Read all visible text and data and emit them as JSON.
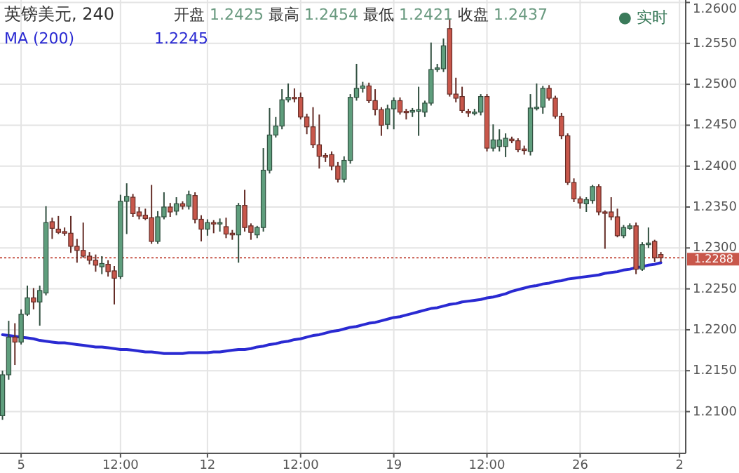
{
  "chart_data": {
    "type": "candlestick",
    "title": "英镑美元, 240",
    "categories": [
      null,
      null,
      null,
      "5",
      null,
      null,
      null,
      null,
      null,
      null,
      null,
      null,
      null,
      null,
      null,
      null,
      null,
      null,
      null,
      "12:00",
      null,
      null,
      null,
      null,
      null,
      null,
      null,
      null,
      null,
      null,
      null,
      null,
      null,
      "12",
      null,
      null,
      null,
      null,
      null,
      null,
      null,
      null,
      null,
      null,
      null,
      null,
      null,
      null,
      "12:00",
      null,
      null,
      null,
      null,
      null,
      null,
      null,
      null,
      null,
      null,
      null,
      null,
      null,
      null,
      "19",
      null,
      null,
      null,
      null,
      null,
      null,
      null,
      null,
      null,
      null,
      null,
      null,
      null,
      null,
      "12:00",
      null,
      null,
      null,
      null,
      null,
      null,
      null,
      null,
      null,
      null,
      null,
      null,
      null,
      null,
      "26",
      null,
      null,
      null,
      null,
      null,
      null,
      null,
      null,
      null,
      null,
      null,
      null,
      null,
      null,
      null,
      "2"
    ],
    "ohlc": [
      [
        1.2095,
        1.215,
        1.209,
        1.2145
      ],
      [
        1.2145,
        1.2211,
        1.2139,
        1.2191
      ],
      [
        1.2191,
        1.2208,
        1.2157,
        1.2185
      ],
      [
        1.2185,
        1.2225,
        1.2182,
        1.2219
      ],
      [
        1.2219,
        1.2254,
        1.2217,
        1.2239
      ],
      [
        1.2239,
        1.2251,
        1.2225,
        1.2234
      ],
      [
        1.2234,
        1.2254,
        1.2205,
        1.2248
      ],
      [
        1.2245,
        1.2351,
        1.2242,
        1.2331
      ],
      [
        1.2332,
        1.2337,
        1.2311,
        1.2324
      ],
      [
        1.2323,
        1.2339,
        1.2317,
        1.2319
      ],
      [
        1.232,
        1.2325,
        1.2315,
        1.2318
      ],
      [
        1.2318,
        1.2339,
        1.2294,
        1.2302
      ],
      [
        1.2302,
        1.2311,
        1.2282,
        1.2297
      ],
      [
        1.2297,
        1.2331,
        1.2288,
        1.229
      ],
      [
        1.229,
        1.2295,
        1.228,
        1.2285
      ],
      [
        1.2285,
        1.2292,
        1.2271,
        1.2279
      ],
      [
        1.2277,
        1.229,
        1.2268,
        1.2281
      ],
      [
        1.228,
        1.2285,
        1.2265,
        1.2271
      ],
      [
        1.2272,
        1.2278,
        1.2231,
        1.2263
      ],
      [
        1.2265,
        1.2365,
        1.2262,
        1.2357
      ],
      [
        1.2357,
        1.2379,
        1.2317,
        1.2363
      ],
      [
        1.2362,
        1.2366,
        1.2338,
        1.2342
      ],
      [
        1.2344,
        1.235,
        1.2335,
        1.2339
      ],
      [
        1.234,
        1.2348,
        1.2334,
        1.2336
      ],
      [
        1.2337,
        1.2377,
        1.2305,
        1.2308
      ],
      [
        1.2308,
        1.2345,
        1.2305,
        1.2338
      ],
      [
        1.2338,
        1.2368,
        1.2335,
        1.235
      ],
      [
        1.235,
        1.2355,
        1.2338,
        1.2344
      ],
      [
        1.2345,
        1.2362,
        1.234,
        1.2354
      ],
      [
        1.2354,
        1.2357,
        1.2347,
        1.2351
      ],
      [
        1.2351,
        1.237,
        1.2347,
        1.2365
      ],
      [
        1.2364,
        1.2368,
        1.233,
        1.2335
      ],
      [
        1.2335,
        1.234,
        1.2308,
        1.2323
      ],
      [
        1.2323,
        1.2335,
        1.2315,
        1.2331
      ],
      [
        1.2331,
        1.2334,
        1.2318,
        1.233
      ],
      [
        1.233,
        1.2336,
        1.232,
        1.2331
      ],
      [
        1.2326,
        1.2337,
        1.2312,
        1.2317
      ],
      [
        1.2318,
        1.2322,
        1.231,
        1.2316
      ],
      [
        1.2316,
        1.2355,
        1.2282,
        1.2352
      ],
      [
        1.2352,
        1.2371,
        1.232,
        1.2325
      ],
      [
        1.2327,
        1.233,
        1.231,
        1.2319
      ],
      [
        1.2316,
        1.2327,
        1.2312,
        1.2325
      ],
      [
        1.2325,
        1.2422,
        1.232,
        1.2395
      ],
      [
        1.2395,
        1.2471,
        1.2391,
        1.2438
      ],
      [
        1.2438,
        1.246,
        1.2435,
        1.2449
      ],
      [
        1.2449,
        1.2494,
        1.2445,
        1.2481
      ],
      [
        1.2481,
        1.2501,
        1.2478,
        1.2484
      ],
      [
        1.2484,
        1.2495,
        1.2478,
        1.2483
      ],
      [
        1.2484,
        1.249,
        1.2457,
        1.246
      ],
      [
        1.246,
        1.2464,
        1.2439,
        1.2448
      ],
      [
        1.2448,
        1.2472,
        1.2422,
        1.2426
      ],
      [
        1.2426,
        1.2463,
        1.2397,
        1.2412
      ],
      [
        1.2413,
        1.2416,
        1.2405,
        1.2411
      ],
      [
        1.2414,
        1.2418,
        1.2395,
        1.24
      ],
      [
        1.24,
        1.2405,
        1.238,
        1.2384
      ],
      [
        1.2384,
        1.2412,
        1.238,
        1.2407
      ],
      [
        1.2407,
        1.2488,
        1.2403,
        1.2484
      ],
      [
        1.2484,
        1.2525,
        1.248,
        1.2495
      ],
      [
        1.2495,
        1.2503,
        1.249,
        1.2498
      ],
      [
        1.2498,
        1.2502,
        1.2477,
        1.248
      ],
      [
        1.248,
        1.2494,
        1.2462,
        1.2469
      ],
      [
        1.2469,
        1.2472,
        1.2437,
        1.245
      ],
      [
        1.2451,
        1.2475,
        1.2445,
        1.247
      ],
      [
        1.247,
        1.2484,
        1.2445,
        1.248
      ],
      [
        1.248,
        1.2484,
        1.2463,
        1.2466
      ],
      [
        1.2467,
        1.247,
        1.2457,
        1.2466
      ],
      [
        1.2466,
        1.2471,
        1.246,
        1.2468
      ],
      [
        1.2467,
        1.2497,
        1.2437,
        1.2469
      ],
      [
        1.2466,
        1.248,
        1.246,
        1.2477
      ],
      [
        1.2477,
        1.2551,
        1.2474,
        1.2518
      ],
      [
        1.2518,
        1.2525,
        1.2515,
        1.252
      ],
      [
        1.2519,
        1.2556,
        1.2515,
        1.2547
      ],
      [
        1.2568,
        1.258,
        1.2485,
        1.2488
      ],
      [
        1.2488,
        1.2508,
        1.2478,
        1.2483
      ],
      [
        1.2485,
        1.2497,
        1.2465,
        1.2468
      ],
      [
        1.2467,
        1.247,
        1.246,
        1.2465
      ],
      [
        1.2465,
        1.247,
        1.2462,
        1.2466
      ],
      [
        1.2466,
        1.2488,
        1.2462,
        1.2485
      ],
      [
        1.2485,
        1.2488,
        1.2418,
        1.2422
      ],
      [
        1.2422,
        1.2451,
        1.2418,
        1.2432
      ],
      [
        1.2424,
        1.2445,
        1.2418,
        1.2432
      ],
      [
        1.2424,
        1.244,
        1.2411,
        1.2434
      ],
      [
        1.2433,
        1.2436,
        1.2428,
        1.2431
      ],
      [
        1.2431,
        1.2434,
        1.2417,
        1.242
      ],
      [
        1.2421,
        1.2425,
        1.2414,
        1.2419
      ],
      [
        1.2418,
        1.2488,
        1.2413,
        1.2471
      ],
      [
        1.2471,
        1.2501,
        1.2468,
        1.2472
      ],
      [
        1.2472,
        1.2498,
        1.2464,
        1.2495
      ],
      [
        1.2495,
        1.2499,
        1.248,
        1.2483
      ],
      [
        1.2483,
        1.2486,
        1.2458,
        1.2461
      ],
      [
        1.2461,
        1.2465,
        1.2433,
        1.2437
      ],
      [
        1.2437,
        1.244,
        1.2377,
        1.238
      ],
      [
        1.238,
        1.2385,
        1.2356,
        1.236
      ],
      [
        1.236,
        1.2363,
        1.2348,
        1.2355
      ],
      [
        1.2354,
        1.2362,
        1.2344,
        1.2359
      ],
      [
        1.2358,
        1.2377,
        1.2354,
        1.2375
      ],
      [
        1.2375,
        1.2378,
        1.234,
        1.2344
      ],
      [
        1.2344,
        1.2346,
        1.2299,
        1.2343
      ],
      [
        1.2344,
        1.2362,
        1.2334,
        1.2338
      ],
      [
        1.2338,
        1.2348,
        1.2313,
        1.2315
      ],
      [
        1.2315,
        1.2328,
        1.2312,
        1.2325
      ],
      [
        1.2324,
        1.233,
        1.2322,
        1.2327
      ],
      [
        1.2327,
        1.2331,
        1.2268,
        1.2274
      ],
      [
        1.2274,
        1.2307,
        1.2272,
        1.2304
      ],
      [
        1.2304,
        1.2325,
        1.23,
        1.2306
      ],
      [
        1.2308,
        1.231,
        1.2283,
        1.2288
      ],
      [
        1.2292,
        1.2295,
        1.2283,
        1.2288
      ],
      null,
      null,
      null
    ],
    "colors": [
      "#5f9e7d",
      "#5f9e7d",
      "#c8574b",
      "#5f9e7d",
      "#5f9e7d",
      "#c8574b",
      "#5f9e7d",
      "#5f9e7d",
      "#c8574b",
      "#c8574b",
      "#c8574b",
      "#c8574b",
      "#c8574b",
      "#c8574b",
      "#c8574b",
      "#c8574b",
      "#5f9e7d",
      "#c8574b",
      "#c8574b",
      "#5f9e7d",
      "#5f9e7d",
      "#c8574b",
      "#c8574b",
      "#c8574b",
      "#c8574b",
      "#5f9e7d",
      "#5f9e7d",
      "#c8574b",
      "#5f9e7d",
      "#c8574b",
      "#5f9e7d",
      "#c8574b",
      "#c8574b",
      "#5f9e7d",
      "#c8574b",
      "#5f9e7d",
      "#c8574b",
      "#c8574b",
      "#5f9e7d",
      "#c8574b",
      "#c8574b",
      "#5f9e7d",
      "#5f9e7d",
      "#5f9e7d",
      "#5f9e7d",
      "#5f9e7d",
      "#5f9e7d",
      "#c8574b",
      "#c8574b",
      "#c8574b",
      "#c8574b",
      "#c8574b",
      "#c8574b",
      "#c8574b",
      "#c8574b",
      "#5f9e7d",
      "#5f9e7d",
      "#5f9e7d",
      "#5f9e7d",
      "#c8574b",
      "#c8574b",
      "#c8574b",
      "#5f9e7d",
      "#5f9e7d",
      "#c8574b",
      "#c8574b",
      "#5f9e7d",
      "#5f9e7d",
      "#5f9e7d",
      "#5f9e7d",
      "#5f9e7d",
      "#5f9e7d",
      "#c8574b",
      "#c8574b",
      "#c8574b",
      "#c8574b",
      "#5f9e7d",
      "#5f9e7d",
      "#c8574b",
      "#5f9e7d",
      "#5f9e7d",
      "#5f9e7d",
      "#c8574b",
      "#c8574b",
      "#c8574b",
      "#5f9e7d",
      "#5f9e7d",
      "#5f9e7d",
      "#c8574b",
      "#c8574b",
      "#c8574b",
      "#c8574b",
      "#c8574b",
      "#c8574b",
      "#5f9e7d",
      "#5f9e7d",
      "#c8574b",
      "#c8574b",
      "#c8574b",
      "#c8574b",
      "#5f9e7d",
      "#5f9e7d",
      "#c8574b",
      "#5f9e7d",
      "#5f9e7d",
      "#c8574b",
      "#c8574b",
      null,
      null,
      null
    ],
    "series": [
      {
        "name": "MA (200)",
        "type": "line",
        "color": "#2a2ad2",
        "values": [
          1.2194,
          1.2193,
          1.2192,
          1.2191,
          1.219,
          1.2189,
          1.2187,
          1.2186,
          1.2185,
          1.2184,
          1.2184,
          1.2183,
          1.2182,
          1.2181,
          1.218,
          1.2179,
          1.2179,
          1.2178,
          1.2177,
          1.2176,
          1.2176,
          1.2175,
          1.2174,
          1.2173,
          1.2173,
          1.2172,
          1.2171,
          1.2171,
          1.2171,
          1.2171,
          1.2172,
          1.2172,
          1.2172,
          1.2172,
          1.2173,
          1.2173,
          1.2174,
          1.2175,
          1.2176,
          1.2176,
          1.2177,
          1.2179,
          1.218,
          1.2182,
          1.2183,
          1.2185,
          1.2186,
          1.2188,
          1.2189,
          1.2191,
          1.2193,
          1.2194,
          1.2196,
          1.2198,
          1.2199,
          1.2201,
          1.2203,
          1.2204,
          1.2206,
          1.2208,
          1.2209,
          1.2211,
          1.2213,
          1.2215,
          1.2216,
          1.2218,
          1.222,
          1.2222,
          1.2224,
          1.2226,
          1.2227,
          1.2229,
          1.2231,
          1.2232,
          1.2234,
          1.2235,
          1.2236,
          1.2237,
          1.2239,
          1.224,
          1.2242,
          1.2244,
          1.2247,
          1.2249,
          1.2251,
          1.2253,
          1.2254,
          1.2256,
          1.2257,
          1.2259,
          1.226,
          1.2262,
          1.2263,
          1.2264,
          1.2265,
          1.2266,
          1.2267,
          1.2269,
          1.227,
          1.2271,
          1.2273,
          1.2274,
          1.2276,
          1.2277,
          1.2279,
          1.228,
          1.2282,
          null,
          null,
          null
        ]
      }
    ],
    "ylim": [
      1.2049,
      1.2603
    ],
    "yticks": [
      {
        "value": 1.21,
        "label": "1.2100"
      },
      {
        "value": 1.215,
        "label": "1.2150"
      },
      {
        "value": 1.22,
        "label": "1.2200"
      },
      {
        "value": 1.225,
        "label": "1.2250"
      },
      {
        "value": 1.23,
        "label": "1.2300"
      },
      {
        "value": 1.235,
        "label": "1.2350"
      },
      {
        "value": 1.24,
        "label": "1.2400"
      },
      {
        "value": 1.245,
        "label": "1.2450"
      },
      {
        "value": 1.25,
        "label": "1.2500"
      },
      {
        "value": 1.255,
        "label": "1.2550"
      },
      {
        "value": 1.26,
        "label": "1.2600"
      }
    ],
    "grid": true,
    "ref_lines": [
      {
        "axis": "y",
        "value": 1.2288,
        "label": "1.2288",
        "color": "#c8574b",
        "line_style": "dotted"
      }
    ],
    "annotations": [
      "开盘 1.2425 最高 1.2454 最低 1.2421 收盘 1.2437",
      "1.2245",
      "● 实时"
    ]
  }
}
